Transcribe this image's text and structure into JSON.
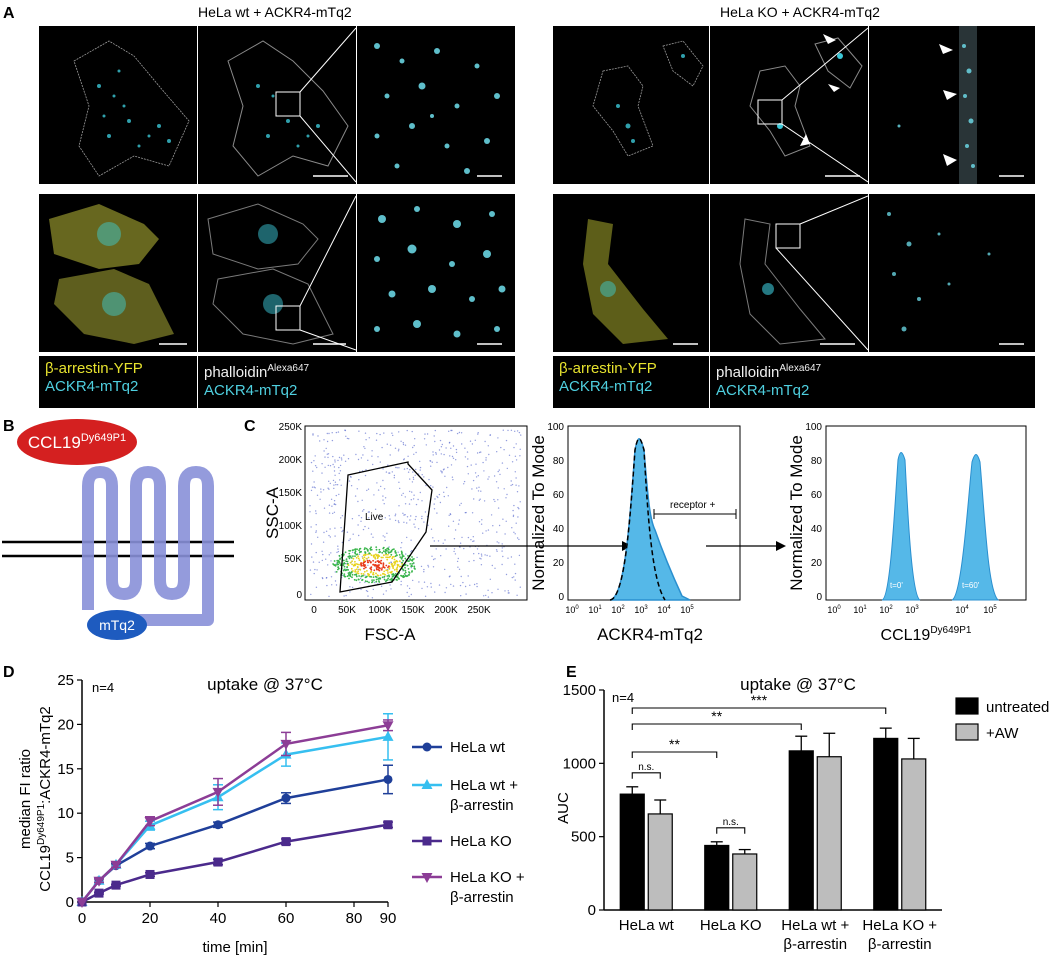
{
  "panel_A": {
    "label": "A",
    "title_left": "HeLa wt + ACKR4-mTq2",
    "title_right": "HeLa KO + ACKR4-mTq2",
    "legend_left": {
      "l1": "β-arrestin-YFP",
      "l2": "ACKR4-mTq2",
      "m1": "phalloidin",
      "m1_sup": "Alexa647",
      "m2": "ACKR4-mTq2"
    },
    "legend_right": {
      "l1": "β-arrestin-YFP",
      "l2": "ACKR4-mTq2",
      "m1": "phalloidin",
      "m1_sup": "Alexa647",
      "m2": "ACKR4-mTq2"
    }
  },
  "panel_B": {
    "label": "B",
    "ligand": "CCL19",
    "ligand_sup": "Dy649P1",
    "tag": "mTq2"
  },
  "panel_C": {
    "label": "C",
    "dot": {
      "ylabel": "SSC-A",
      "xlabel": "FSC-A",
      "gate": "Live",
      "yticks": [
        "250K",
        "200K",
        "150K",
        "100K",
        "50K",
        "0"
      ],
      "xticks": [
        "0",
        "50K",
        "100K",
        "150K",
        "200K",
        "250K"
      ]
    },
    "hist1": {
      "ylabel": "Normalized To Mode",
      "xlabel": "ACKR4-mTq2",
      "gate": "receptor +",
      "yticks": [
        "100",
        "80",
        "60",
        "40",
        "20",
        "0"
      ]
    },
    "hist2": {
      "ylabel": "Normalized To Mode",
      "xlabel": "CCL19",
      "xlabel_sup": "Dy649P1",
      "peak1": "t=0'",
      "peak2": "t=60'",
      "yticks": [
        "100",
        "80",
        "60",
        "40",
        "20",
        "0"
      ]
    }
  },
  "chart_data": [
    {
      "type": "line",
      "panel": "D",
      "title": "uptake @ 37°C",
      "annotation": "n=4",
      "xlabel": "time [min]",
      "ylabel_line1": "median  FI ratio",
      "ylabel_line2_pre": "CCL19",
      "ylabel_line2_sup": "Dy649P1",
      "ylabel_line2_post": ":ACKR4-mTq2",
      "xlim": [
        0,
        90
      ],
      "ylim": [
        0,
        25
      ],
      "xticks": [
        0,
        20,
        40,
        60,
        80,
        90
      ],
      "yticks": [
        0,
        5,
        10,
        15,
        20,
        25
      ],
      "x": [
        0,
        5,
        10,
        20,
        40,
        60,
        90
      ],
      "series": [
        {
          "name": "HeLa wt",
          "color": "#1f3f99",
          "marker": "circle",
          "values": [
            0,
            2.4,
            4.1,
            6.3,
            8.7,
            11.7,
            13.8
          ],
          "errors": [
            0,
            0.2,
            0.2,
            0.3,
            0.3,
            0.6,
            1.6
          ]
        },
        {
          "name": "HeLa wt + β-arrestin",
          "color": "#36bff0",
          "marker": "triangle-up",
          "values": [
            0,
            2.4,
            4.2,
            8.6,
            11.8,
            16.6,
            18.6
          ],
          "errors": [
            0,
            0.2,
            0.3,
            0.5,
            1.4,
            1.3,
            2.6
          ]
        },
        {
          "name": "HeLa KO",
          "color": "#4b2a8c",
          "marker": "square",
          "values": [
            0,
            1.0,
            1.9,
            3.1,
            4.5,
            6.8,
            8.7
          ],
          "errors": [
            0,
            0.1,
            0.1,
            0.2,
            0.3,
            0.3,
            0.3
          ]
        },
        {
          "name": "HeLa KO + β-arrestin",
          "color": "#8c3d96",
          "marker": "triangle-down",
          "values": [
            0,
            2.4,
            4.2,
            9.1,
            12.4,
            17.8,
            19.9
          ],
          "errors": [
            0,
            0.2,
            0.3,
            0.5,
            1.5,
            1.3,
            0.6
          ]
        }
      ],
      "legend": [
        "HeLa wt",
        "HeLa wt +",
        "β-arrestin",
        "HeLa KO",
        "HeLa KO +",
        "β-arrestin"
      ]
    },
    {
      "type": "bar",
      "panel": "E",
      "title": "uptake @ 37°C",
      "annotation": "n=4",
      "ylabel": "AUC",
      "ylim": [
        0,
        1500
      ],
      "yticks": [
        0,
        500,
        1000,
        1500
      ],
      "categories": [
        [
          "HeLa wt"
        ],
        [
          "HeLa KO"
        ],
        [
          "HeLa wt +",
          "β-arrestin"
        ],
        [
          "HeLa KO +",
          "β-arrestin"
        ]
      ],
      "series": [
        {
          "name": "untreated",
          "color": "#000000",
          "values": [
            790,
            440,
            1085,
            1170
          ],
          "errors": [
            50,
            25,
            100,
            70
          ]
        },
        {
          "name": "+AW",
          "color": "#bdbdbd",
          "values": [
            655,
            382,
            1045,
            1030
          ],
          "errors": [
            95,
            30,
            160,
            140
          ]
        }
      ],
      "significance": [
        {
          "label": "***",
          "from": 0,
          "to": 3
        },
        {
          "label": "**",
          "from": 0,
          "to": 2
        },
        {
          "label": "**",
          "from": 0,
          "to": 1
        },
        {
          "label": "n.s.",
          "within": 0
        },
        {
          "label": "n.s.",
          "within": 1
        }
      ]
    }
  ]
}
